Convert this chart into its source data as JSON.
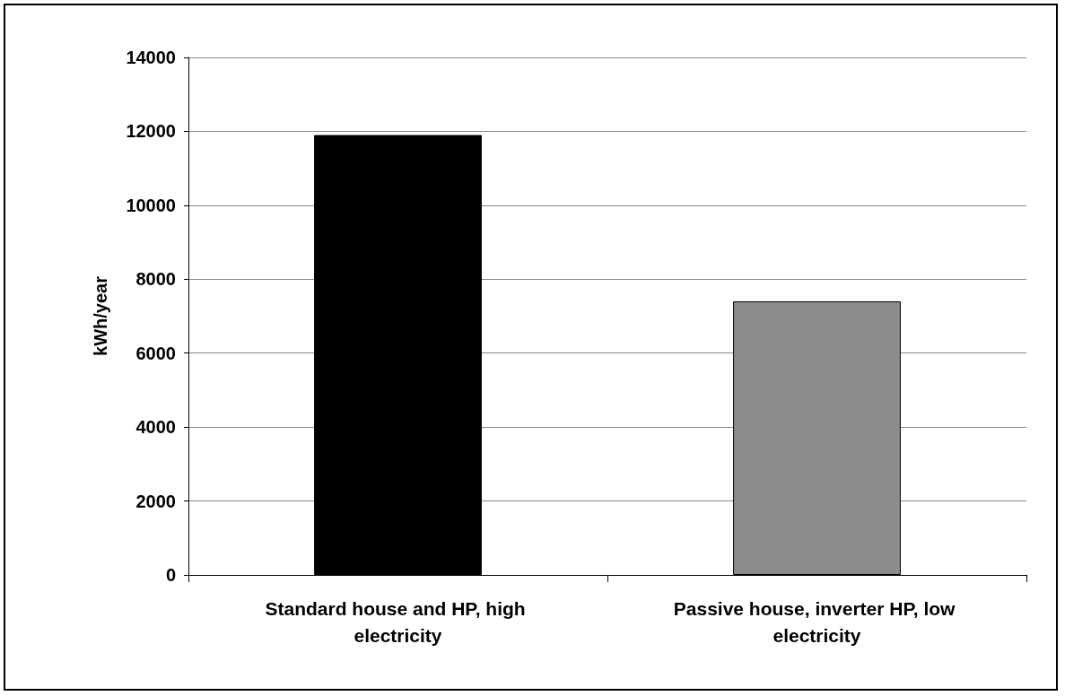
{
  "chart_data": {
    "type": "bar",
    "ylabel": "kWh/year",
    "categories": [
      "Standard house and HP, high electricity",
      "Passive house, inverter HP, low electricity"
    ],
    "values": [
      11900,
      7400
    ],
    "colors": [
      "#000000",
      "#8c8c8c"
    ],
    "ylim": [
      0,
      14000
    ],
    "yticks": [
      0,
      2000,
      4000,
      6000,
      8000,
      10000,
      12000,
      14000
    ],
    "grid": "y"
  }
}
